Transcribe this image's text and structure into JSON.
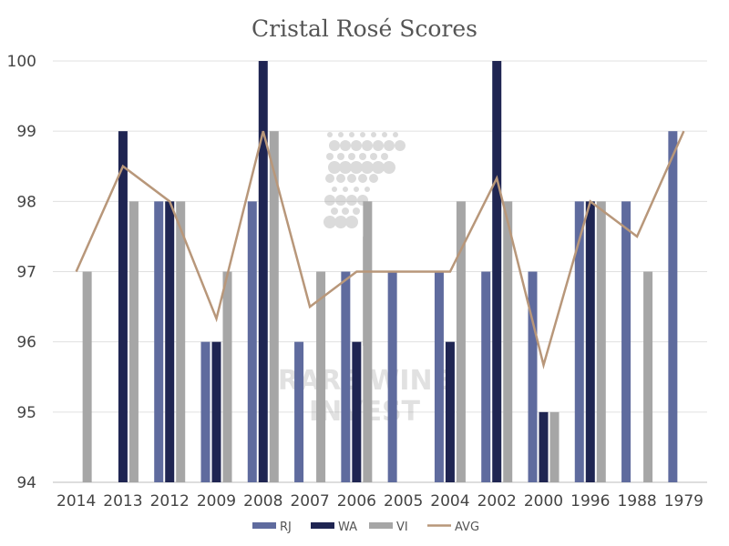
{
  "chart_data": {
    "type": "bar",
    "title": "Cristal Rosé Scores",
    "xlabel": "",
    "ylabel": "",
    "ylim": [
      94,
      100
    ],
    "yticks": [
      94,
      95,
      96,
      97,
      98,
      99,
      100
    ],
    "grid": true,
    "legend_position": "bottom",
    "categories": [
      "2014",
      "2013",
      "2012",
      "2009",
      "2008",
      "2007",
      "2006",
      "2005",
      "2004",
      "2002",
      "2000",
      "1996",
      "1988",
      "1979"
    ],
    "series": [
      {
        "name": "RJ",
        "type": "bar",
        "color": "#5f6b9e",
        "values": [
          null,
          null,
          98,
          96,
          98,
          96,
          97,
          97,
          97,
          97,
          97,
          98,
          98,
          99
        ]
      },
      {
        "name": "WA",
        "type": "bar",
        "color": "#1f2552",
        "values": [
          null,
          99,
          98,
          96,
          100,
          null,
          96,
          null,
          96,
          100,
          95,
          98,
          null,
          null
        ]
      },
      {
        "name": "VI",
        "type": "bar",
        "color": "#a6a6a6",
        "values": [
          97,
          98,
          98,
          97,
          99,
          97,
          98,
          null,
          98,
          98,
          95,
          98,
          97,
          null
        ]
      },
      {
        "name": "AVG",
        "type": "line",
        "color": "#b8977a",
        "values": [
          97,
          98.5,
          98,
          96.33,
          99,
          96.5,
          97,
          97,
          97,
          98.33,
          95.67,
          98,
          97.5,
          99
        ]
      }
    ],
    "watermark": "RARE WINE INVEST"
  }
}
